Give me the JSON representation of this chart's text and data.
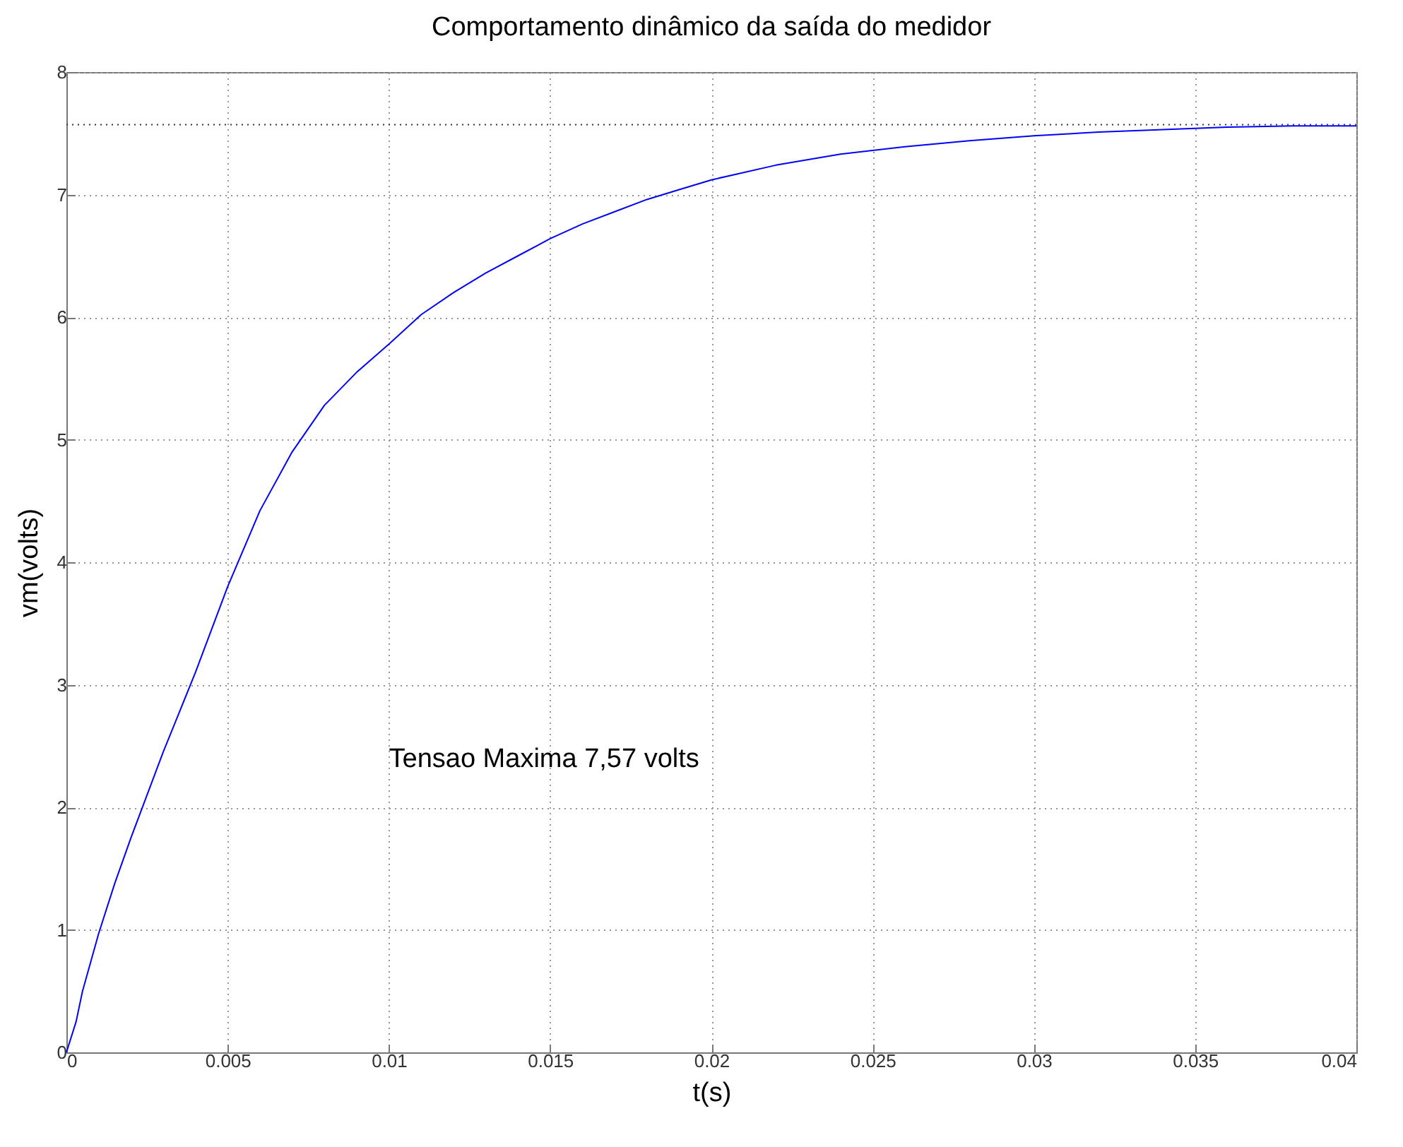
{
  "chart_data": {
    "type": "line",
    "title": "Comportamento dinâmico da saída do medidor",
    "xlabel": "t(s)",
    "ylabel": "vm(volts)",
    "x": [
      0,
      0.0003,
      0.0005,
      0.001,
      0.0015,
      0.002,
      0.003,
      0.004,
      0.005,
      0.006,
      0.007,
      0.008,
      0.009,
      0.01,
      0.011,
      0.012,
      0.013,
      0.014,
      0.015,
      0.016,
      0.017,
      0.018,
      0.019,
      0.02,
      0.022,
      0.024,
      0.026,
      0.028,
      0.03,
      0.032,
      0.034,
      0.036,
      0.038,
      0.04
    ],
    "series": [
      {
        "color": "#0000ff",
        "values": [
          0,
          0.25,
          0.5,
          0.97,
          1.38,
          1.75,
          2.45,
          3.1,
          3.8,
          4.42,
          4.9,
          5.28,
          5.55,
          5.78,
          6.02,
          6.2,
          6.36,
          6.5,
          6.64,
          6.76,
          6.86,
          6.96,
          7.04,
          7.12,
          7.24,
          7.33,
          7.39,
          7.44,
          7.48,
          7.51,
          7.53,
          7.55,
          7.56,
          7.56
        ]
      }
    ],
    "xlim": [
      0,
      0.04
    ],
    "xticks": [
      0,
      0.005,
      0.01,
      0.015,
      0.02,
      0.025,
      0.03,
      0.035,
      0.04
    ],
    "ylim": [
      0,
      8
    ],
    "yticks": [
      0,
      1,
      2,
      3,
      4,
      5,
      6,
      7,
      8
    ],
    "grid": true,
    "line_style": "solid",
    "marker": "none",
    "ref_lines": [
      {
        "axis": "y",
        "value": 7.57,
        "line_style": "dotted",
        "color": "#333333"
      }
    ],
    "annotations": [
      "Tensao Maxima 7,57 volts"
    ]
  }
}
